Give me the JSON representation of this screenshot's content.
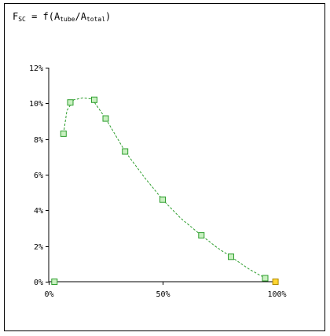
{
  "chart_data": {
    "type": "scatter",
    "title": {
      "f": "F",
      "f_sub": "SC",
      "eq": " = f(A",
      "a1_sub": "tube",
      "slash": "/A",
      "a2_sub": "total",
      "close": ")"
    },
    "xlabel": "",
    "ylabel": "",
    "xlim": [
      0,
      100
    ],
    "ylim": [
      0,
      12
    ],
    "x_ticks": [
      {
        "value": 0,
        "label": "0%"
      },
      {
        "value": 50,
        "label": "50%"
      },
      {
        "value": 100,
        "label": "100%"
      }
    ],
    "y_ticks": [
      {
        "value": 0,
        "label": "0%"
      },
      {
        "value": 2,
        "label": "2%"
      },
      {
        "value": 4,
        "label": "4%"
      },
      {
        "value": 6,
        "label": "6%"
      },
      {
        "value": 8,
        "label": "8%"
      },
      {
        "value": 10,
        "label": "10%"
      },
      {
        "value": 12,
        "label": "12%"
      }
    ],
    "grid": false,
    "legend": "none",
    "series": [
      {
        "color": "#2e9e2e",
        "fill": "#c8f0c0",
        "points": [
          {
            "x": 2.5,
            "y": 0.0
          },
          {
            "x": 6.5,
            "y": 8.3
          },
          {
            "x": 9.5,
            "y": 10.05
          },
          {
            "x": 20,
            "y": 10.2
          },
          {
            "x": 25,
            "y": 9.15
          },
          {
            "x": 33.5,
            "y": 7.3
          },
          {
            "x": 50,
            "y": 4.6
          },
          {
            "x": 67,
            "y": 2.6
          },
          {
            "x": 80,
            "y": 1.4
          },
          {
            "x": 95,
            "y": 0.2
          }
        ]
      },
      {
        "color": "#b08a00",
        "fill": "#ffd633",
        "points": [
          {
            "x": 99.5,
            "y": 0.0
          }
        ]
      }
    ],
    "fit_curve": {
      "color": "#2e9e2e",
      "style": "dashed",
      "points": [
        {
          "x": 6.5,
          "y": 8.3
        },
        {
          "x": 8,
          "y": 9.6
        },
        {
          "x": 11,
          "y": 10.2
        },
        {
          "x": 15,
          "y": 10.3
        },
        {
          "x": 19,
          "y": 10.25
        },
        {
          "x": 25,
          "y": 9.15
        },
        {
          "x": 33.5,
          "y": 7.3
        },
        {
          "x": 42,
          "y": 5.85
        },
        {
          "x": 50,
          "y": 4.6
        },
        {
          "x": 58,
          "y": 3.55
        },
        {
          "x": 67,
          "y": 2.6
        },
        {
          "x": 74,
          "y": 1.9
        },
        {
          "x": 80,
          "y": 1.4
        },
        {
          "x": 88,
          "y": 0.7
        },
        {
          "x": 95,
          "y": 0.2
        }
      ]
    }
  }
}
